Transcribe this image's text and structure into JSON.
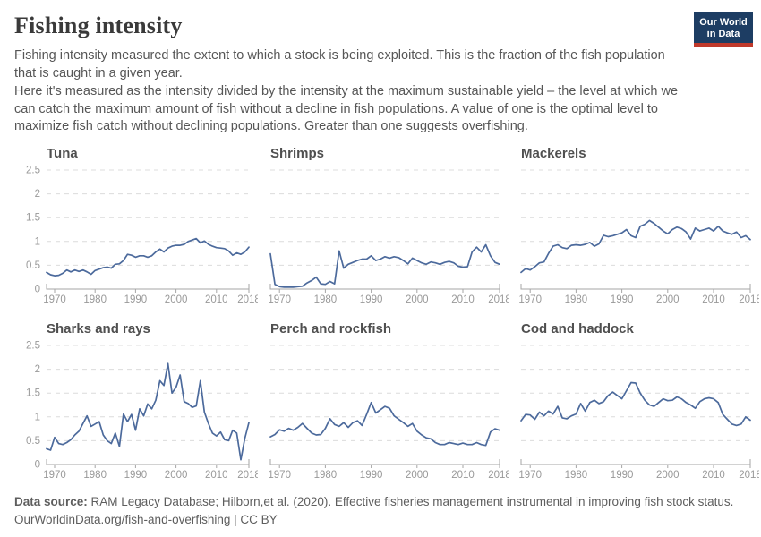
{
  "header": {
    "title": "Fishing intensity",
    "logo": {
      "line1": "Our World",
      "line2": "in Data",
      "bg_color": "#1d3d63",
      "accent_color": "#c0392b"
    },
    "subtitle_p1": "Fishing intensity measured the extent to which a stock is being exploited. This is the fraction of the fish population that is caught in a given year.",
    "subtitle_p2": "Here it's measured as the intensity divided by the intensity at the maximum sustainable yield – the level at which we can catch the maximum amount of fish without a decline in fish populations. A value of one is the optimal level to maximize fish catch without declining populations. Greater than one suggests overfishing."
  },
  "chart_data": {
    "type": "line",
    "line_color": "#4C6A9C",
    "grid": true,
    "ylim": [
      0,
      2.5
    ],
    "y_ticks": [
      0,
      0.5,
      1,
      1.5,
      2,
      2.5
    ],
    "x_ticks": [
      1970,
      1980,
      1990,
      2000,
      2010,
      2018
    ],
    "years": {
      "start": 1968,
      "end": 2018
    },
    "facets": [
      {
        "name": "Tuna",
        "values": [
          0.35,
          0.3,
          0.28,
          0.29,
          0.33,
          0.4,
          0.36,
          0.4,
          0.37,
          0.4,
          0.36,
          0.31,
          0.39,
          0.42,
          0.45,
          0.46,
          0.44,
          0.52,
          0.53,
          0.6,
          0.73,
          0.71,
          0.67,
          0.7,
          0.7,
          0.67,
          0.7,
          0.78,
          0.84,
          0.78,
          0.86,
          0.9,
          0.92,
          0.92,
          0.94,
          1.0,
          1.03,
          1.06,
          0.97,
          1.01,
          0.94,
          0.9,
          0.87,
          0.86,
          0.85,
          0.8,
          0.71,
          0.76,
          0.73,
          0.78,
          0.88
        ]
      },
      {
        "name": "Shrimps",
        "values": [
          0.74,
          0.1,
          0.05,
          0.04,
          0.04,
          0.04,
          0.05,
          0.06,
          0.13,
          0.18,
          0.25,
          0.11,
          0.1,
          0.16,
          0.11,
          0.8,
          0.44,
          0.52,
          0.56,
          0.6,
          0.63,
          0.63,
          0.7,
          0.6,
          0.63,
          0.68,
          0.65,
          0.68,
          0.66,
          0.6,
          0.53,
          0.65,
          0.6,
          0.55,
          0.52,
          0.57,
          0.55,
          0.52,
          0.56,
          0.58,
          0.55,
          0.48,
          0.46,
          0.47,
          0.78,
          0.88,
          0.78,
          0.93,
          0.7,
          0.56,
          0.52
        ]
      },
      {
        "name": "Mackerels",
        "values": [
          0.35,
          0.43,
          0.4,
          0.47,
          0.55,
          0.57,
          0.75,
          0.9,
          0.93,
          0.87,
          0.85,
          0.92,
          0.93,
          0.92,
          0.94,
          0.98,
          0.9,
          0.95,
          1.13,
          1.1,
          1.12,
          1.15,
          1.18,
          1.25,
          1.12,
          1.08,
          1.32,
          1.36,
          1.44,
          1.38,
          1.3,
          1.22,
          1.16,
          1.25,
          1.3,
          1.27,
          1.2,
          1.05,
          1.28,
          1.22,
          1.25,
          1.28,
          1.22,
          1.32,
          1.22,
          1.18,
          1.15,
          1.2,
          1.08,
          1.12,
          1.04
        ]
      },
      {
        "name": "Sharks and rays",
        "values": [
          0.33,
          0.3,
          0.57,
          0.44,
          0.42,
          0.46,
          0.52,
          0.62,
          0.7,
          0.86,
          1.02,
          0.8,
          0.85,
          0.9,
          0.62,
          0.5,
          0.44,
          0.66,
          0.38,
          1.06,
          0.9,
          1.05,
          0.72,
          1.17,
          1.02,
          1.27,
          1.17,
          1.35,
          1.76,
          1.66,
          2.12,
          1.5,
          1.62,
          1.88,
          1.32,
          1.28,
          1.2,
          1.23,
          1.76,
          1.1,
          0.86,
          0.66,
          0.6,
          0.68,
          0.52,
          0.5,
          0.72,
          0.66,
          0.1,
          0.55,
          0.88
        ]
      },
      {
        "name": "Perch and rockfish",
        "values": [
          0.58,
          0.63,
          0.73,
          0.7,
          0.76,
          0.72,
          0.78,
          0.86,
          0.76,
          0.66,
          0.62,
          0.63,
          0.76,
          0.96,
          0.84,
          0.8,
          0.88,
          0.78,
          0.88,
          0.92,
          0.82,
          1.05,
          1.3,
          1.08,
          1.15,
          1.22,
          1.18,
          1.02,
          0.95,
          0.88,
          0.8,
          0.86,
          0.7,
          0.62,
          0.56,
          0.54,
          0.46,
          0.42,
          0.42,
          0.46,
          0.44,
          0.42,
          0.45,
          0.42,
          0.42,
          0.46,
          0.42,
          0.4,
          0.68,
          0.75,
          0.72
        ]
      },
      {
        "name": "Cod and haddock",
        "values": [
          0.92,
          1.05,
          1.04,
          0.95,
          1.1,
          1.02,
          1.12,
          1.06,
          1.22,
          0.98,
          0.96,
          1.02,
          1.06,
          1.28,
          1.12,
          1.3,
          1.35,
          1.28,
          1.32,
          1.45,
          1.52,
          1.45,
          1.38,
          1.55,
          1.72,
          1.71,
          1.5,
          1.35,
          1.25,
          1.22,
          1.3,
          1.38,
          1.34,
          1.35,
          1.42,
          1.38,
          1.3,
          1.25,
          1.18,
          1.32,
          1.38,
          1.4,
          1.38,
          1.3,
          1.05,
          0.95,
          0.85,
          0.82,
          0.85,
          1.0,
          0.93
        ]
      }
    ]
  },
  "footer": {
    "source_label": "Data source:",
    "source_text": " RAM Legacy Database; Hilborn,et al. (2020). Effective fisheries management instrumental in improving fish stock status.",
    "line2": "OurWorldinData.org/fish-and-overfishing | CC BY"
  }
}
